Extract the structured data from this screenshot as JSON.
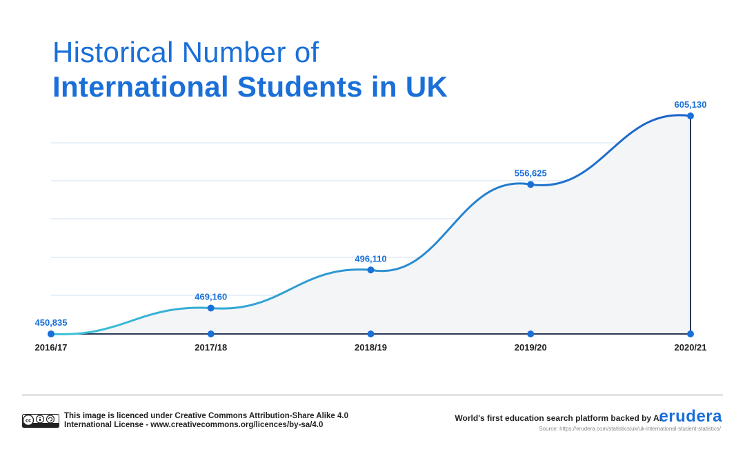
{
  "title_line1": "Historical Number of",
  "title_line2": "International Students in UK",
  "chart_data": {
    "type": "area",
    "categories": [
      "2016/17",
      "2017/18",
      "2018/19",
      "2019/20",
      "2020/21"
    ],
    "values": [
      450835,
      469160,
      496110,
      556625,
      605130
    ],
    "value_labels": [
      "450,835",
      "469,160",
      "496,110",
      "556,625",
      "605,130"
    ],
    "ylim": [
      450835,
      605130
    ],
    "grid": "horizontal",
    "colors": {
      "line_start": "#3cc3d8",
      "line_end": "#1a5fc9",
      "point": "#1a6fd8",
      "fill": "#f4f5f7",
      "grid": "#cfe0f5",
      "label": "#1a6fd8"
    }
  },
  "footer": {
    "license_line1": "This image is licenced under Creative Commons Attribution-Share Alike 4.0",
    "license_line2": "International License - www.creativecommons.org/licences/by-sa/4.0",
    "tagline": "World's first education search platform backed by AI",
    "brand": "erudera",
    "source": "Source: https://erudera.com/statistics/uk/uk-international-student-statistics/"
  }
}
